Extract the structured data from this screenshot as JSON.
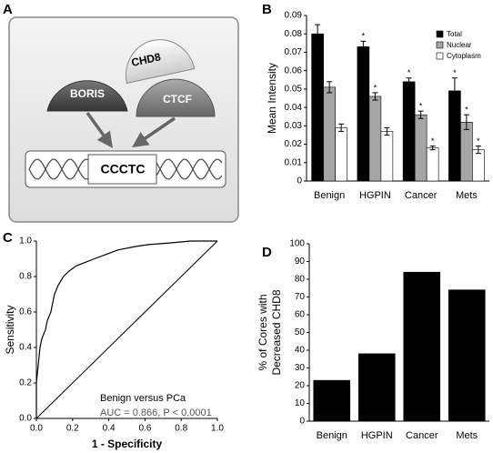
{
  "diagram": {
    "panel_label": "A",
    "proteins": [
      "BORIS",
      "CHD8",
      "CTCF"
    ],
    "motif": "CCCTC"
  },
  "chart_data": [
    {
      "type": "bar",
      "panel_label": "B",
      "ylabel": "Mean Intensity",
      "categories": [
        "Benign",
        "HGPIN",
        "Cancer",
        "Mets"
      ],
      "series": [
        {
          "name": "Total",
          "color": "#000000",
          "values": [
            0.08,
            0.073,
            0.054,
            0.049
          ],
          "errors": [
            0.005,
            0.003,
            0.002,
            0.007
          ],
          "markers": [
            null,
            "*",
            "*",
            "*"
          ]
        },
        {
          "name": "Nuclear",
          "color": "#a6a6a6",
          "values": [
            0.051,
            0.046,
            0.036,
            0.032
          ],
          "errors": [
            0.003,
            0.002,
            0.002,
            0.004
          ],
          "markers": [
            null,
            "*",
            "*",
            "*"
          ]
        },
        {
          "name": "Cytoplasm",
          "color": "#ffffff",
          "values": [
            0.029,
            0.027,
            0.018,
            0.017
          ],
          "errors": [
            0.002,
            0.002,
            0.001,
            0.002
          ],
          "markers": [
            null,
            null,
            "*",
            "*"
          ]
        }
      ],
      "ylim": [
        0,
        0.09
      ],
      "yticks": [
        0,
        0.01,
        0.02,
        0.03,
        0.04,
        0.05,
        0.06,
        0.07,
        0.08,
        0.09
      ],
      "legend": "top-right"
    },
    {
      "type": "line",
      "panel_label": "C",
      "xlabel": "1 - Specificity",
      "ylabel": "Sensitivity",
      "annotations": [
        "Benign versus PCa",
        "AUC = 0.866, P < 0.0001"
      ],
      "x": [
        0,
        0,
        0.01,
        0.02,
        0.03,
        0.05,
        0.06,
        0.08,
        0.09,
        0.1,
        0.12,
        0.15,
        0.18,
        0.22,
        0.27,
        0.32,
        0.4,
        0.45,
        0.55,
        0.62,
        0.75,
        0.85,
        1
      ],
      "values": [
        0,
        0.2,
        0.3,
        0.4,
        0.45,
        0.5,
        0.55,
        0.6,
        0.65,
        0.7,
        0.75,
        0.8,
        0.83,
        0.86,
        0.88,
        0.9,
        0.93,
        0.95,
        0.97,
        0.98,
        0.99,
        1,
        1
      ],
      "color": "#000000",
      "xlim": [
        0,
        1
      ],
      "ylim": [
        0,
        1
      ],
      "xticks": [
        {
          "value": 0,
          "label": "0.0"
        },
        0.2,
        0.4,
        0.6,
        0.8,
        {
          "value": 1,
          "label": "1.0"
        }
      ],
      "yticks": [
        {
          "value": 0,
          "label": "0.0"
        },
        0.2,
        0.4,
        0.6,
        0.8,
        {
          "value": 1,
          "label": "1.0"
        }
      ]
    },
    {
      "type": "bar",
      "panel_label": "D",
      "ylabel": [
        "% of Cores with",
        "Decreased CHD8"
      ],
      "categories": [
        "Benign",
        "HGPIN",
        "Cancer",
        "Mets"
      ],
      "series": [
        {
          "color": "#000000",
          "values": [
            23,
            38,
            84,
            74
          ]
        }
      ],
      "ylim": [
        0,
        100
      ],
      "yticks": [
        0,
        10,
        20,
        30,
        40,
        50,
        60,
        70,
        80,
        90,
        100
      ]
    }
  ]
}
